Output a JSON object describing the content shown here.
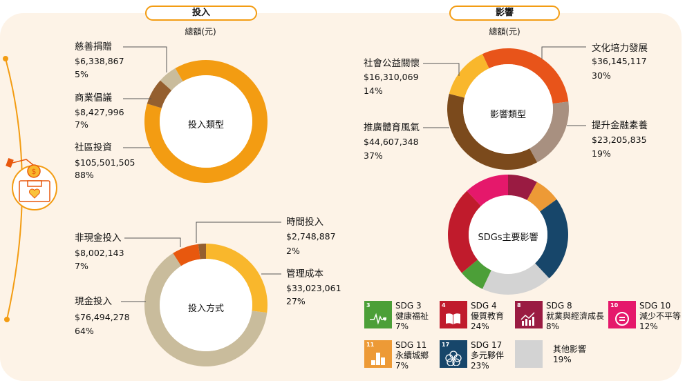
{
  "investment": {
    "header": "投入",
    "unit": "總額(元)",
    "type_chart": {
      "center_label": "投入類型",
      "items": [
        {
          "label": "社區投資",
          "amount": "$105,501,505",
          "pct": "88%",
          "value": 88,
          "color": "#f39c12"
        },
        {
          "label": "商業倡議",
          "amount": "$8,427,996",
          "pct": "7%",
          "value": 7,
          "color": "#945f2f"
        },
        {
          "label": "慈善捐贈",
          "amount": "$6,338,867",
          "pct": "5%",
          "value": 5,
          "color": "#c9bc9c"
        }
      ]
    },
    "method_chart": {
      "center_label": "投入方式",
      "items": [
        {
          "label": "管理成本",
          "amount": "$33,023,061",
          "pct": "27%",
          "value": 27,
          "color": "#f9b72c"
        },
        {
          "label": "現金投入",
          "amount": "$76,494,278",
          "pct": "64%",
          "value": 64,
          "color": "#c9bc9c"
        },
        {
          "label": "非現金投入",
          "amount": "$8,002,143",
          "pct": "7%",
          "value": 7,
          "color": "#e8580e"
        },
        {
          "label": "時間投入",
          "amount": "$2,748,887",
          "pct": "2%",
          "value": 2,
          "color": "#945f2f"
        }
      ]
    }
  },
  "impact": {
    "header": "影響",
    "unit": "總額(元)",
    "type_chart": {
      "center_label": "影響類型",
      "items": [
        {
          "label": "文化培力發展",
          "amount": "$36,145,117",
          "pct": "30%",
          "value": 30,
          "color": "#e8541a"
        },
        {
          "label": "提升金融素養",
          "amount": "$23,205,835",
          "pct": "19%",
          "value": 19,
          "color": "#a89080"
        },
        {
          "label": "推廣體育風氣",
          "amount": "$44,607,348",
          "pct": "37%",
          "value": 37,
          "color": "#7b4a1c"
        },
        {
          "label": "社會公益關懷",
          "amount": "$16,310,069",
          "pct": "14%",
          "value": 14,
          "color": "#f9b72c"
        }
      ]
    },
    "sdg_chart": {
      "center_label": "SDGs主要影響",
      "items": [
        {
          "code": "SDG 8",
          "name": "就業與經濟成長",
          "pct": "8%",
          "value": 8,
          "color": "#9a1b42",
          "num": "8",
          "icon": "growth-chart-icon"
        },
        {
          "code": "SDG 11",
          "name": "永續城鄉",
          "pct": "7%",
          "value": 7,
          "color": "#ed9a36",
          "num": "11",
          "icon": "city-icon"
        },
        {
          "code": "SDG 17",
          "name": "多元夥伴",
          "pct": "23%",
          "value": 23,
          "color": "#17466a",
          "num": "17",
          "icon": "flower-rings-icon"
        },
        {
          "code": "",
          "name": "其他影響",
          "pct": "19%",
          "value": 19,
          "color": "#d3d3d3",
          "num": "",
          "icon": ""
        },
        {
          "code": "SDG 3",
          "name": "健康福祉",
          "pct": "7%",
          "value": 7,
          "color": "#4c9f38",
          "num": "3",
          "icon": "heartbeat-icon"
        },
        {
          "code": "SDG 4",
          "name": "優質教育",
          "pct": "24%",
          "value": 24,
          "color": "#c01b2c",
          "num": "4",
          "icon": "book-icon"
        },
        {
          "code": "SDG 10",
          "name": "減少不平等",
          "pct": "12%",
          "value": 12,
          "color": "#e5186b",
          "num": "10",
          "icon": "equality-icon"
        }
      ]
    }
  },
  "colors": {
    "accent": "#f39c12",
    "background": "#fdf3e7"
  }
}
